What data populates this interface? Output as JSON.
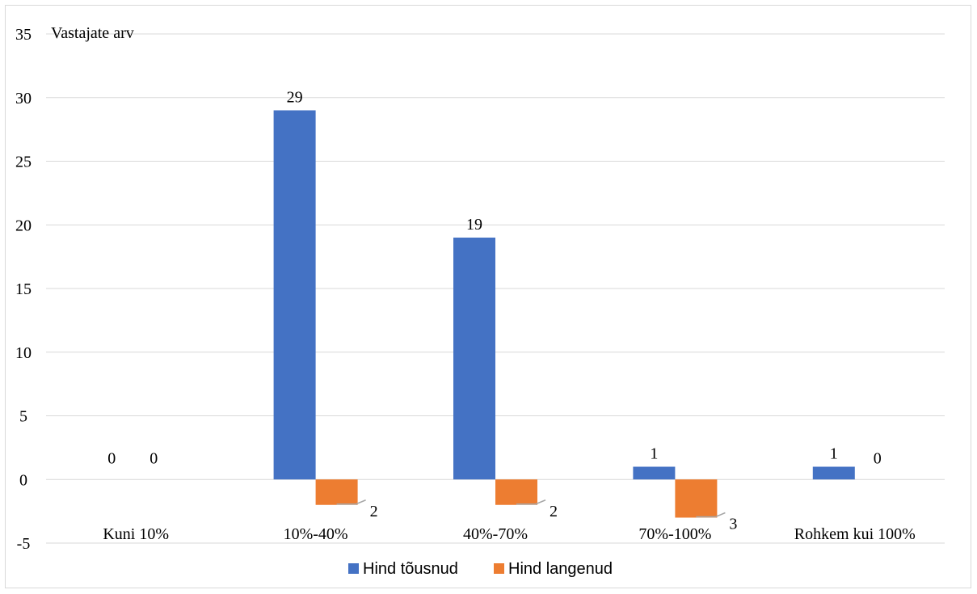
{
  "chart_data": {
    "type": "bar",
    "ylabel": "Vastajate arv",
    "categories": [
      "Kuni 10%",
      "10%-40%",
      "40%-70%",
      "70%-100%",
      "Rohkem kui 100%"
    ],
    "series": [
      {
        "name": "Hind tõusnud",
        "color": "#4472C4",
        "values": [
          0,
          29,
          19,
          1,
          1
        ],
        "labels": [
          "0",
          "29",
          "19",
          "1",
          "1"
        ]
      },
      {
        "name": "Hind langenud",
        "color": "#ED7D31",
        "values": [
          0,
          -2,
          -2,
          -3,
          0
        ],
        "labels": [
          "0",
          "2",
          "2",
          "3",
          "0"
        ]
      }
    ],
    "ylim": [
      -5,
      35
    ],
    "yticks": [
      -5,
      0,
      5,
      10,
      15,
      20,
      25,
      30,
      35
    ],
    "grid": true,
    "legend_position": "bottom"
  }
}
